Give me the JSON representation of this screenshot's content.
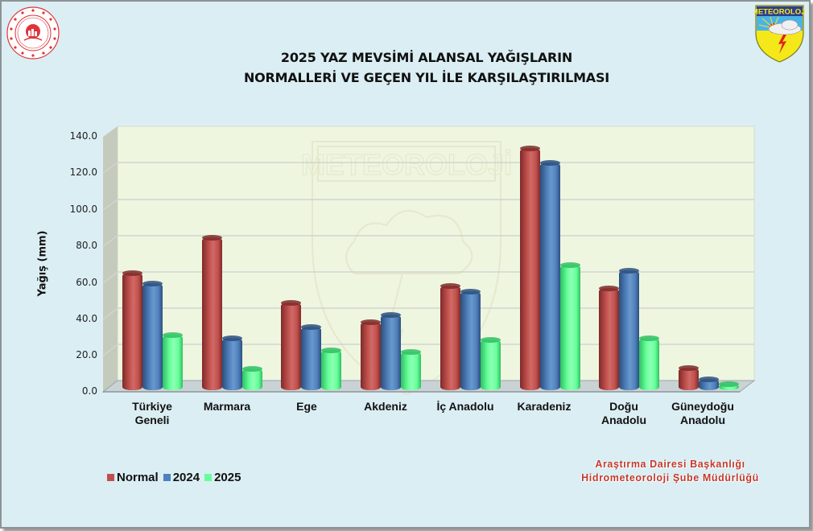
{
  "header": {
    "title_line1": "2025 YAZ MEVSİMİ ALANSAL YAĞIŞLARIN",
    "title_line2": "NORMALLERİ VE GEÇEN YIL İLE KARŞILAŞTIRILMASI",
    "logo_left": "ministry-emblem",
    "logo_right": "METEOROLOJİ",
    "watermark": "METEOROLOJİ"
  },
  "footer": {
    "line1": "Araştırma Dairesi Başkanlığı",
    "line2": "Hidrometeoroloji Şube Müdürlüğü"
  },
  "colors": {
    "normal": "#c0504d",
    "y2024": "#4f81bd",
    "y2025": "#66ff99",
    "background": "#dbeef4",
    "plot_wall": "#eef6e0"
  },
  "chart_data": {
    "type": "bar",
    "title": "2025 YAZ MEVSİMİ ALANSAL YAĞIŞLARIN NORMALLERİ VE GEÇEN YIL İLE KARŞILAŞTIRILMASI",
    "xlabel": "",
    "ylabel": "Yağış (mm)",
    "ylim": [
      0,
      140
    ],
    "yticks": [
      "0.0",
      "20.0",
      "40.0",
      "60.0",
      "80.0",
      "100.0",
      "120.0",
      "140.0"
    ],
    "grid": true,
    "legend_position": "bottom-left",
    "categories": [
      "Türkiye\nGeneli",
      "Marmara",
      "Ege",
      "Akdeniz",
      "İç Anadolu",
      "Karadeniz",
      "Doğu\nAnadolu",
      "Güneydoğu\nAnadolu"
    ],
    "series": [
      {
        "name": "Normal",
        "values": [
          64.5,
          83.8,
          48.0,
          37.6,
          57.5,
          133.0,
          56.0,
          12.5
        ]
      },
      {
        "name": "2024",
        "values": [
          58.6,
          28.9,
          34.7,
          41.3,
          54.4,
          125.0,
          66.0,
          6.0
        ]
      },
      {
        "name": "2025",
        "values": [
          30.5,
          12.0,
          22.0,
          21.4,
          28.0,
          69.0,
          28.5,
          3.4
        ]
      }
    ]
  }
}
